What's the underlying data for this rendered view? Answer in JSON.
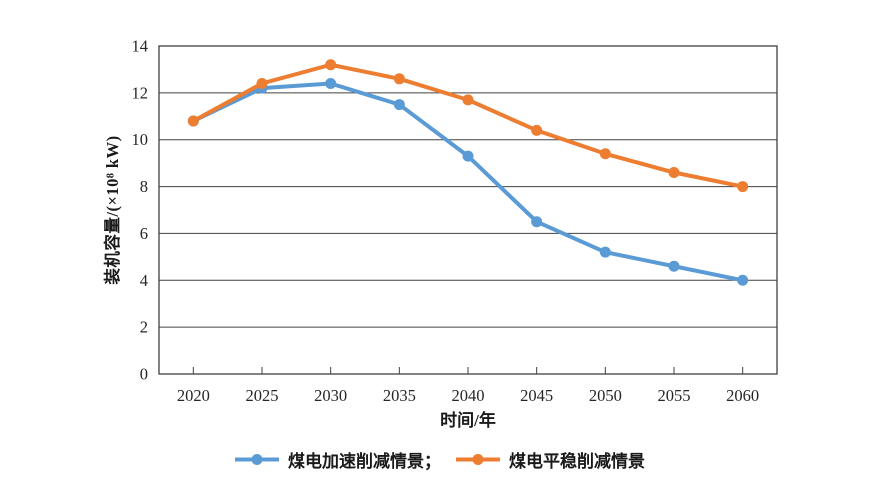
{
  "figure": {
    "background": "#ffffff",
    "axis_color": "#404040",
    "tick_text_color": "#262626"
  },
  "chart_data": {
    "type": "line",
    "title": "",
    "x": [
      "2020",
      "2025",
      "2030",
      "2035",
      "2040",
      "2045",
      "2050",
      "2055",
      "2060"
    ],
    "xlabel": "时间/年",
    "ylabel": "装机容量/(×10⁸ kW)",
    "ylim": [
      0,
      14
    ],
    "ytick_step": 2,
    "y_tick_labels": [
      "0",
      "2",
      "4",
      "6",
      "8",
      "10",
      "12",
      "14"
    ],
    "grid": true,
    "legend_position": "bottom",
    "series": [
      {
        "name": "煤电加速削减情景；",
        "color": "#5B9BD5",
        "values": [
          10.8,
          12.2,
          12.4,
          11.5,
          9.3,
          6.5,
          5.2,
          4.6,
          4.0
        ]
      },
      {
        "name": "煤电平稳削减情景",
        "color": "#ED7D31",
        "values": [
          10.8,
          12.4,
          13.2,
          12.6,
          11.7,
          10.4,
          9.4,
          8.6,
          8.0
        ]
      }
    ]
  }
}
